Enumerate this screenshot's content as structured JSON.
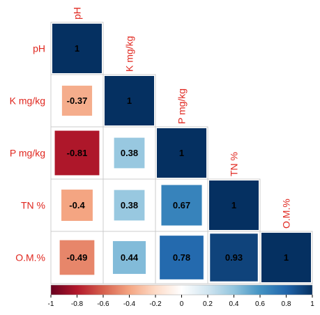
{
  "chart_data": {
    "type": "heatmap",
    "style": "lower-triangle correlation matrix, square size proportional to |r|",
    "variables": [
      "pH",
      "K mg/kg",
      "P mg/kg",
      "TN %",
      "O.M.%"
    ],
    "cells": [
      {
        "row": "pH",
        "col": "pH",
        "value": 1,
        "label": "1"
      },
      {
        "row": "K mg/kg",
        "col": "pH",
        "value": -0.37,
        "label": "-0.37"
      },
      {
        "row": "K mg/kg",
        "col": "K mg/kg",
        "value": 1,
        "label": "1"
      },
      {
        "row": "P mg/kg",
        "col": "pH",
        "value": -0.81,
        "label": "-0.81"
      },
      {
        "row": "P mg/kg",
        "col": "K mg/kg",
        "value": 0.38,
        "label": "0.38"
      },
      {
        "row": "P mg/kg",
        "col": "P mg/kg",
        "value": 1,
        "label": "1"
      },
      {
        "row": "TN %",
        "col": "pH",
        "value": -0.4,
        "label": "-0.4"
      },
      {
        "row": "TN %",
        "col": "K mg/kg",
        "value": 0.38,
        "label": "0.38"
      },
      {
        "row": "TN %",
        "col": "P mg/kg",
        "value": 0.67,
        "label": "0.67"
      },
      {
        "row": "TN %",
        "col": "TN %",
        "value": 1,
        "label": "1"
      },
      {
        "row": "O.M.%",
        "col": "pH",
        "value": -0.49,
        "label": "-0.49"
      },
      {
        "row": "O.M.%",
        "col": "K mg/kg",
        "value": 0.44,
        "label": "0.44"
      },
      {
        "row": "O.M.%",
        "col": "P mg/kg",
        "value": 0.78,
        "label": "0.78"
      },
      {
        "row": "O.M.%",
        "col": "TN %",
        "value": 0.93,
        "label": "0.93"
      },
      {
        "row": "O.M.%",
        "col": "O.M.%",
        "value": 1,
        "label": "1"
      }
    ],
    "colorbar": {
      "range": [
        -1,
        1
      ],
      "ticks": [
        "-1",
        "-0.8",
        "-0.6",
        "-0.4",
        "-0.2",
        "0",
        "0.2",
        "0.4",
        "0.6",
        "0.8",
        "1"
      ],
      "colors": [
        "#67001F",
        "#B2182B",
        "#D6604D",
        "#F4A582",
        "#FDDBC7",
        "#FFFFFF",
        "#D1E5F0",
        "#92C5DE",
        "#4393C3",
        "#2166AC",
        "#053061"
      ]
    },
    "label_color": "#E0271F",
    "grid_color": "#CCCCCC"
  }
}
